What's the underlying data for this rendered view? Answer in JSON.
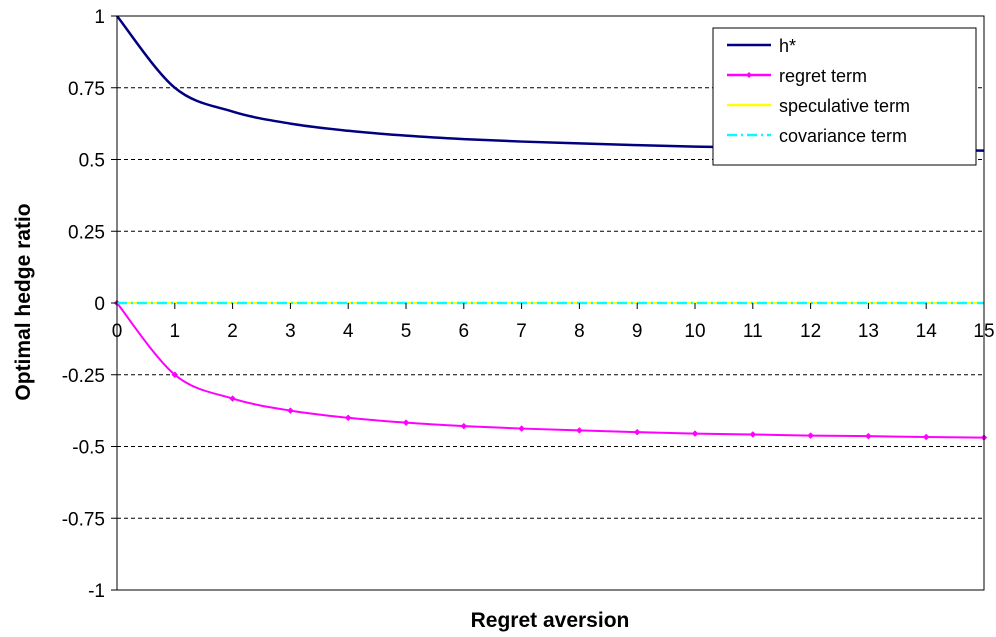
{
  "chart_data": {
    "type": "line",
    "xlabel": "Regret aversion",
    "ylabel": "Optimal hedge ratio",
    "xlim": [
      0,
      15
    ],
    "ylim": [
      -1,
      1
    ],
    "x_ticks": [
      "0",
      "1",
      "2",
      "3",
      "4",
      "5",
      "6",
      "7",
      "8",
      "9",
      "10",
      "11",
      "12",
      "13",
      "14",
      "15"
    ],
    "y_ticks": [
      "1",
      "0.75",
      "0.5",
      "0.25",
      "0",
      "-0.25",
      "-0.5",
      "-0.75",
      "-1"
    ],
    "grid": "horizontal dashed",
    "legend_position": "top-right",
    "x": [
      0,
      1,
      2,
      3,
      4,
      5,
      6,
      7,
      8,
      9,
      10,
      11,
      12,
      13,
      14,
      15
    ],
    "series": [
      {
        "name": "h*",
        "color": "#000080",
        "marker": "none",
        "style": "solid",
        "values": [
          1.0,
          0.75,
          0.667,
          0.625,
          0.6,
          0.583,
          0.571,
          0.5625,
          0.556,
          0.55,
          0.545,
          0.542,
          0.538,
          0.536,
          0.533,
          0.531
        ]
      },
      {
        "name": "regret term",
        "color": "#ff00ff",
        "marker": "diamond",
        "style": "solid",
        "values": [
          0.0,
          -0.25,
          -0.333,
          -0.375,
          -0.4,
          -0.417,
          -0.429,
          -0.4375,
          -0.444,
          -0.45,
          -0.455,
          -0.458,
          -0.462,
          -0.464,
          -0.467,
          -0.469
        ]
      },
      {
        "name": "speculative term",
        "color": "#ffff00",
        "marker": "none",
        "style": "solid",
        "values": [
          0,
          0,
          0,
          0,
          0,
          0,
          0,
          0,
          0,
          0,
          0,
          0,
          0,
          0,
          0,
          0
        ]
      },
      {
        "name": "covariance term",
        "color": "#00ffff",
        "marker": "none",
        "style": "dash-dot",
        "values": [
          0,
          0,
          0,
          0,
          0,
          0,
          0,
          0,
          0,
          0,
          0,
          0,
          0,
          0,
          0,
          0
        ]
      }
    ]
  }
}
